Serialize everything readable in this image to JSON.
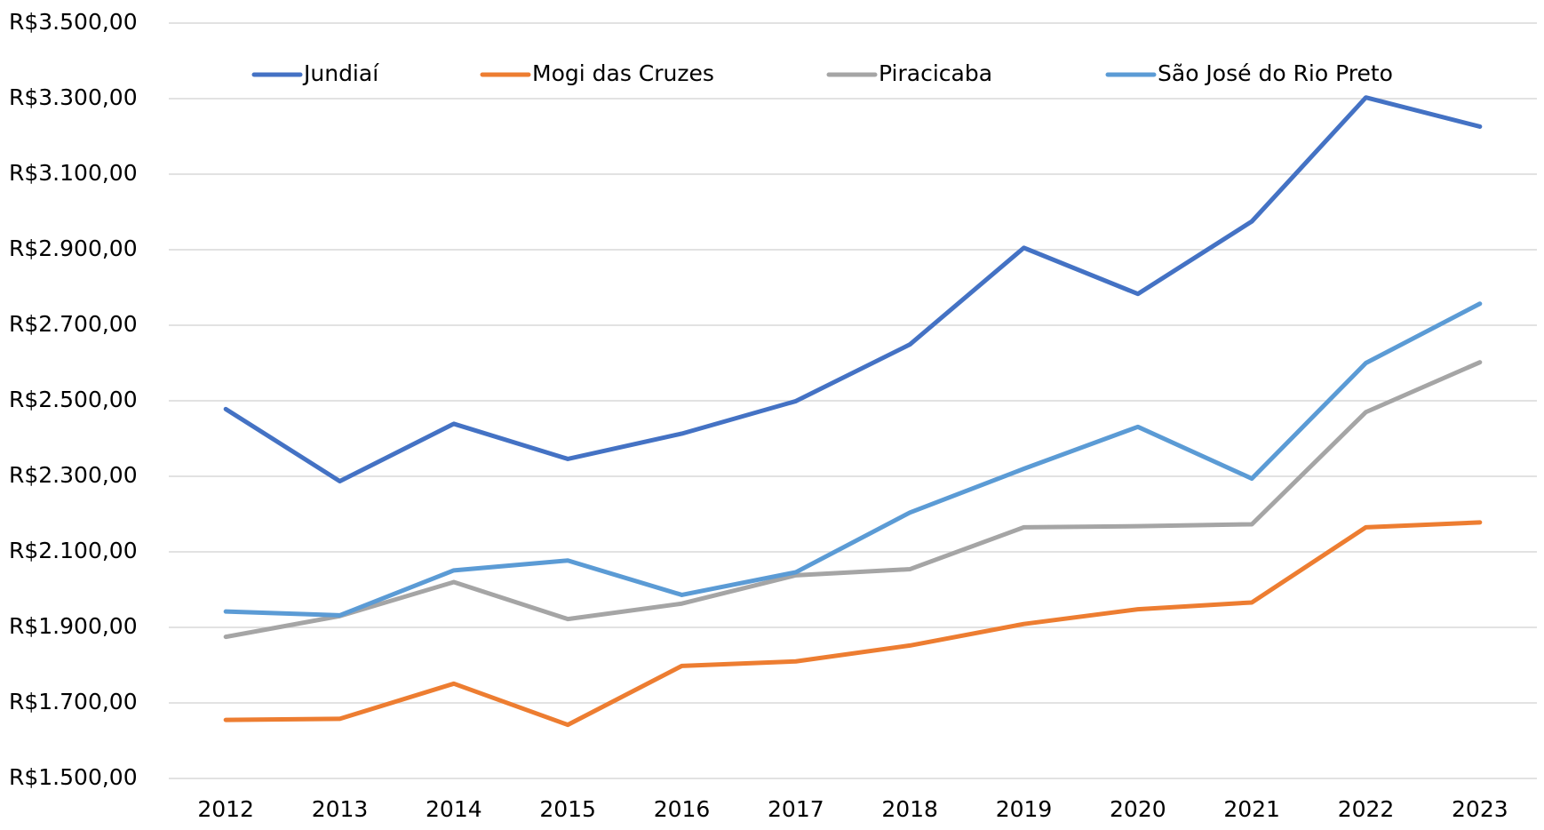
{
  "chart_data": {
    "type": "line",
    "categories": [
      "2012",
      "2013",
      "2014",
      "2015",
      "2016",
      "2017",
      "2018",
      "2019",
      "2020",
      "2021",
      "2022",
      "2023"
    ],
    "series": [
      {
        "name": "Jundiaí",
        "color": "#4472c4",
        "values": [
          2478,
          2287,
          2439,
          2346,
          2413,
          2499,
          2649,
          2905,
          2783,
          2975,
          3303,
          3226
        ]
      },
      {
        "name": "Mogi das Cruzes",
        "color": "#ed7d31",
        "values": [
          1655,
          1658,
          1751,
          1642,
          1798,
          1810,
          1852,
          1909,
          1948,
          1966,
          2165,
          2178
        ]
      },
      {
        "name": "Piracicaba",
        "color": "#a5a5a5",
        "values": [
          1875,
          1930,
          2020,
          1922,
          1963,
          2038,
          2054,
          2165,
          2168,
          2173,
          2470,
          2602
        ]
      },
      {
        "name": "São José do Rio Preto",
        "color": "#5b9bd5",
        "values": [
          1942,
          1932,
          2051,
          2077,
          1986,
          2046,
          2204,
          2320,
          2431,
          2294,
          2600,
          2757
        ]
      }
    ],
    "ylim": [
      1500,
      3500
    ],
    "yticks": [
      {
        "value": 1500,
        "label": "R$1.500,00"
      },
      {
        "value": 1700,
        "label": "R$1.700,00"
      },
      {
        "value": 1900,
        "label": "R$1.900,00"
      },
      {
        "value": 2100,
        "label": "R$2.100,00"
      },
      {
        "value": 2300,
        "label": "R$2.300,00"
      },
      {
        "value": 2500,
        "label": "R$2.500,00"
      },
      {
        "value": 2700,
        "label": "R$2.700,00"
      },
      {
        "value": 2900,
        "label": "R$2.900,00"
      },
      {
        "value": 3100,
        "label": "R$3.100,00"
      },
      {
        "value": 3300,
        "label": "R$3.300,00"
      },
      {
        "value": 3500,
        "label": "R$3.500,00"
      }
    ],
    "grid": true,
    "legend": "top"
  }
}
